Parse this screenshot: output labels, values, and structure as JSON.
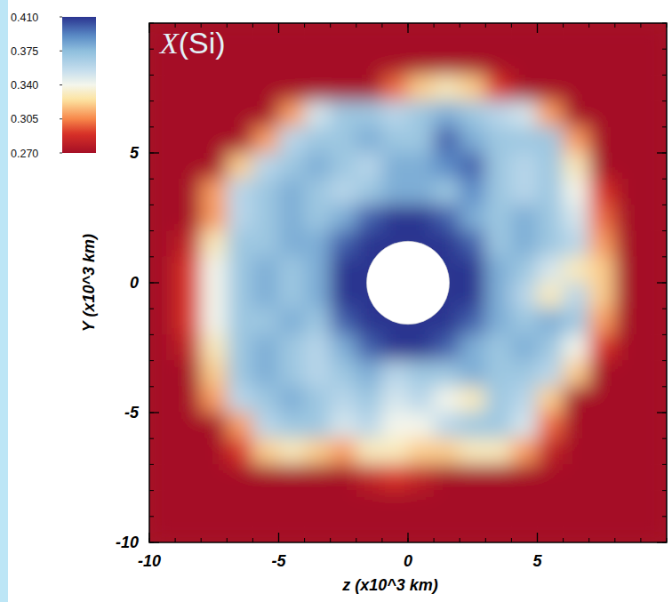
{
  "chart_data": {
    "type": "heatmap",
    "title": "X(Si)",
    "x_label": "z (x10^3 km)",
    "y_label": "Y (x10^3 km)",
    "xlim": [
      -10,
      10
    ],
    "ylim": [
      -10,
      10
    ],
    "xticks": [
      -10,
      -5,
      0,
      5
    ],
    "yticks": [
      -10,
      -5,
      0,
      5
    ],
    "tick_labels": true,
    "inner_boundary_radius": 1.6,
    "colorbar": {
      "range": [
        0.27,
        0.41
      ],
      "ticks": [
        {
          "value": 0.41,
          "label": "0.410"
        },
        0.375,
        {
          "value": 0.34,
          "label": "0.340"
        },
        0.305,
        {
          "value": 0.27,
          "label": "0.270"
        }
      ]
    },
    "x": [
      -9.5,
      -8.5,
      -7.5,
      -6.5,
      -5.5,
      -4.5,
      -3.5,
      -2.5,
      -1.5,
      -0.5,
      0.5,
      1.5,
      2.5,
      3.5,
      4.5,
      5.5,
      6.5,
      7.5,
      8.5,
      9.5
    ],
    "y": [
      9.5,
      8.5,
      7.5,
      6.5,
      5.5,
      4.5,
      3.5,
      2.5,
      1.5,
      0.5,
      -0.5,
      -1.5,
      -2.5,
      -3.5,
      -4.5,
      -5.5,
      -6.5,
      -7.5,
      -8.5,
      -9.5
    ],
    "values": [
      [
        0.27,
        0.27,
        0.27,
        0.27,
        0.27,
        0.27,
        0.27,
        0.27,
        0.27,
        0.27,
        0.27,
        0.27,
        0.27,
        0.27,
        0.27,
        0.27,
        0.27,
        0.27,
        0.27,
        0.27
      ],
      [
        0.27,
        0.27,
        0.27,
        0.27,
        0.27,
        0.27,
        0.27,
        0.27,
        0.27,
        0.27,
        0.27,
        0.27,
        0.27,
        0.27,
        0.27,
        0.27,
        0.27,
        0.27,
        0.27,
        0.27
      ],
      [
        0.27,
        0.27,
        0.27,
        0.27,
        0.27,
        0.27,
        0.27,
        0.27,
        0.27,
        0.3,
        0.32,
        0.33,
        0.32,
        0.29,
        0.27,
        0.27,
        0.27,
        0.27,
        0.27,
        0.27
      ],
      [
        0.27,
        0.27,
        0.27,
        0.27,
        0.27,
        0.31,
        0.35,
        0.37,
        0.37,
        0.36,
        0.37,
        0.38,
        0.37,
        0.36,
        0.35,
        0.31,
        0.27,
        0.27,
        0.27,
        0.27
      ],
      [
        0.27,
        0.27,
        0.27,
        0.27,
        0.31,
        0.36,
        0.37,
        0.37,
        0.38,
        0.37,
        0.37,
        0.4,
        0.38,
        0.37,
        0.37,
        0.37,
        0.31,
        0.27,
        0.27,
        0.27
      ],
      [
        0.27,
        0.27,
        0.27,
        0.32,
        0.36,
        0.37,
        0.38,
        0.37,
        0.36,
        0.38,
        0.38,
        0.39,
        0.4,
        0.37,
        0.36,
        0.37,
        0.33,
        0.27,
        0.27,
        0.27
      ],
      [
        0.27,
        0.27,
        0.31,
        0.36,
        0.37,
        0.38,
        0.37,
        0.36,
        0.37,
        0.38,
        0.38,
        0.37,
        0.39,
        0.37,
        0.36,
        0.37,
        0.34,
        0.29,
        0.27,
        0.27
      ],
      [
        0.27,
        0.27,
        0.31,
        0.36,
        0.37,
        0.38,
        0.37,
        0.38,
        0.4,
        0.41,
        0.41,
        0.4,
        0.38,
        0.37,
        0.38,
        0.37,
        0.35,
        0.3,
        0.27,
        0.27
      ],
      [
        0.27,
        0.28,
        0.33,
        0.37,
        0.37,
        0.38,
        0.38,
        0.4,
        0.41,
        0.41,
        0.41,
        0.41,
        0.4,
        0.37,
        0.38,
        0.37,
        0.36,
        0.31,
        0.27,
        0.27
      ],
      [
        0.27,
        0.29,
        0.34,
        0.37,
        0.38,
        0.37,
        0.38,
        0.41,
        0.41,
        null,
        null,
        0.41,
        0.41,
        0.38,
        0.37,
        0.35,
        0.33,
        0.32,
        0.27,
        0.27
      ],
      [
        0.27,
        0.29,
        0.34,
        0.37,
        0.38,
        0.37,
        0.38,
        0.41,
        0.41,
        null,
        null,
        0.41,
        0.41,
        0.38,
        0.36,
        0.33,
        0.36,
        0.32,
        0.27,
        0.27
      ],
      [
        0.27,
        0.29,
        0.34,
        0.37,
        0.37,
        0.38,
        0.37,
        0.4,
        0.41,
        0.41,
        0.41,
        0.41,
        0.4,
        0.38,
        0.37,
        0.38,
        0.37,
        0.31,
        0.27,
        0.27
      ],
      [
        0.27,
        0.28,
        0.33,
        0.37,
        0.38,
        0.37,
        0.36,
        0.38,
        0.4,
        0.41,
        0.41,
        0.4,
        0.38,
        0.37,
        0.38,
        0.37,
        0.34,
        0.29,
        0.27,
        0.27
      ],
      [
        0.27,
        0.27,
        0.32,
        0.37,
        0.38,
        0.37,
        0.36,
        0.37,
        0.38,
        0.36,
        0.37,
        0.37,
        0.38,
        0.37,
        0.37,
        0.36,
        0.32,
        0.27,
        0.27,
        0.27
      ],
      [
        0.27,
        0.27,
        0.31,
        0.36,
        0.37,
        0.38,
        0.37,
        0.36,
        0.37,
        0.35,
        0.36,
        0.34,
        0.33,
        0.37,
        0.36,
        0.32,
        0.27,
        0.27,
        0.27,
        0.27
      ],
      [
        0.27,
        0.27,
        0.27,
        0.31,
        0.36,
        0.37,
        0.37,
        0.35,
        0.36,
        0.34,
        0.34,
        0.36,
        0.37,
        0.37,
        0.35,
        0.3,
        0.27,
        0.27,
        0.27,
        0.27
      ],
      [
        0.27,
        0.27,
        0.27,
        0.29,
        0.32,
        0.33,
        0.32,
        0.31,
        0.33,
        0.33,
        0.32,
        0.32,
        0.33,
        0.33,
        0.31,
        0.28,
        0.27,
        0.27,
        0.27,
        0.27
      ],
      [
        0.27,
        0.27,
        0.27,
        0.27,
        0.27,
        0.27,
        0.27,
        0.27,
        0.28,
        0.29,
        0.28,
        0.27,
        0.27,
        0.27,
        0.27,
        0.27,
        0.27,
        0.27,
        0.27,
        0.27
      ],
      [
        0.27,
        0.27,
        0.27,
        0.27,
        0.27,
        0.27,
        0.27,
        0.27,
        0.27,
        0.27,
        0.27,
        0.27,
        0.27,
        0.27,
        0.27,
        0.27,
        0.27,
        0.27,
        0.27,
        0.27
      ],
      [
        0.27,
        0.27,
        0.27,
        0.27,
        0.27,
        0.27,
        0.27,
        0.27,
        0.27,
        0.27,
        0.27,
        0.27,
        0.27,
        0.27,
        0.27,
        0.27,
        0.27,
        0.27,
        0.27,
        0.27
      ]
    ]
  }
}
